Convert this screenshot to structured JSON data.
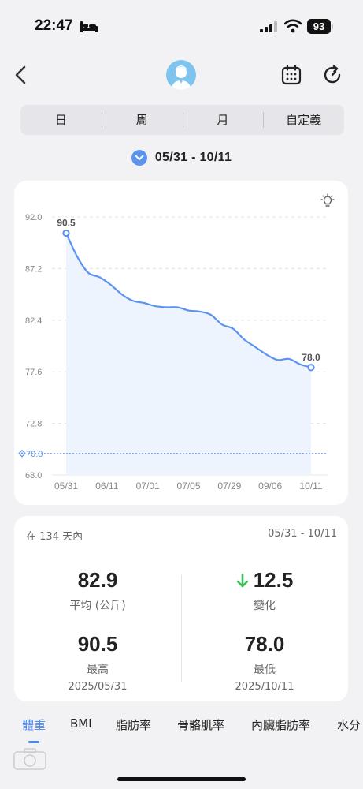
{
  "status_bar": {
    "time": "22:47",
    "battery": "93"
  },
  "nav": {
    "back_icon": "chevron-left-icon",
    "avatar_icon": "user-avatar-icon",
    "calendar_icon": "calendar-icon",
    "refresh_icon": "refresh-icon"
  },
  "period_tabs": [
    "日",
    "周",
    "月",
    "自定義"
  ],
  "date_range": "05/31 - 10/11",
  "chart_data": {
    "type": "area",
    "y_ticks": [
      "92.0",
      "87.2",
      "82.4",
      "77.6",
      "72.8",
      "68.0"
    ],
    "ylim": [
      68.0,
      92.0
    ],
    "x_ticks": [
      "05/31",
      "06/11",
      "07/01",
      "07/05",
      "07/29",
      "09/06",
      "10/11"
    ],
    "goal": {
      "value": 70.0,
      "label": "70.0"
    },
    "series": [
      {
        "points": [
          90.5,
          88.3,
          86.8,
          86.4,
          85.7,
          84.8,
          84.2,
          84.0,
          83.7,
          83.6,
          83.6,
          83.3,
          83.2,
          82.9,
          82.0,
          81.6,
          80.6,
          79.9,
          79.2,
          78.7,
          78.8,
          78.3,
          78.0
        ]
      }
    ],
    "start_label": "90.5",
    "end_label": "78.0",
    "colors": {
      "line": "#5b93f0",
      "fill": "#eef4fe",
      "goal": "#5b93f0"
    }
  },
  "stats": {
    "period_label": "在 134 天內",
    "range": "05/31 - 10/11",
    "average": {
      "value": "82.9",
      "label": "平均 (公斤)"
    },
    "change": {
      "value": "12.5",
      "label": "變化",
      "direction_icon": "arrow-down-icon",
      "color": "#3dbd5a"
    },
    "highest": {
      "value": "90.5",
      "label": "最高",
      "date": "2025/05/31"
    },
    "lowest": {
      "value": "78.0",
      "label": "最低",
      "date": "2025/10/11"
    }
  },
  "metric_tabs": [
    "體重",
    "BMI",
    "脂肪率",
    "骨骼肌率",
    "內臟脂肪率",
    "水分"
  ],
  "accent": "#4a87ee"
}
